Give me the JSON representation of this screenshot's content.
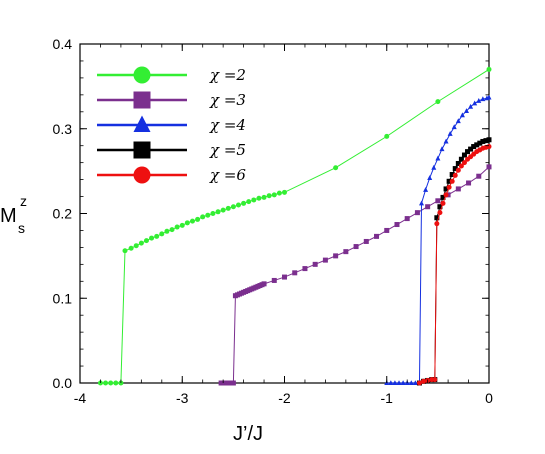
{
  "chart_data": {
    "type": "line",
    "xlabel": "J’/J",
    "ylabel": "M",
    "ylabel_sub": "s",
    "ylabel_sup": "z",
    "xlim": [
      -4,
      0
    ],
    "ylim": [
      0,
      0.4
    ],
    "xticks": [
      "-4",
      "-3",
      "-2",
      "-1",
      "0"
    ],
    "yticks": [
      "0.0",
      "0.1",
      "0.2",
      "0.3",
      "0.4"
    ],
    "legend_position": "top-left",
    "series": [
      {
        "name": "χ =2",
        "color": "#33ee33",
        "marker": "circle",
        "x": [
          -3.8,
          -3.75,
          -3.7,
          -3.65,
          -3.6,
          -3.56,
          -3.5,
          -3.45,
          -3.4,
          -3.35,
          -3.3,
          -3.25,
          -3.2,
          -3.15,
          -3.1,
          -3.05,
          -3.0,
          -2.95,
          -2.9,
          -2.85,
          -2.8,
          -2.75,
          -2.7,
          -2.65,
          -2.6,
          -2.55,
          -2.5,
          -2.45,
          -2.4,
          -2.35,
          -2.3,
          -2.25,
          -2.2,
          -2.15,
          -2.1,
          -2.05,
          -2.0,
          -1.5,
          -1.0,
          -0.5,
          0.0
        ],
        "y": [
          0.0,
          0.0,
          0.0,
          0.0,
          0.0,
          0.156,
          0.159,
          0.162,
          0.165,
          0.168,
          0.171,
          0.173,
          0.176,
          0.179,
          0.181,
          0.184,
          0.186,
          0.189,
          0.191,
          0.193,
          0.196,
          0.198,
          0.2,
          0.202,
          0.204,
          0.206,
          0.208,
          0.21,
          0.212,
          0.214,
          0.216,
          0.218,
          0.219,
          0.221,
          0.222,
          0.224,
          0.225,
          0.254,
          0.291,
          0.332,
          0.37
        ]
      },
      {
        "name": "χ =3",
        "color": "#7b2f8e",
        "marker": "square",
        "x": [
          -2.62,
          -2.58,
          -2.54,
          -2.5,
          -2.48,
          -2.46,
          -2.44,
          -2.42,
          -2.4,
          -2.38,
          -2.36,
          -2.34,
          -2.32,
          -2.3,
          -2.28,
          -2.26,
          -2.24,
          -2.22,
          -2.2,
          -2.1,
          -2.0,
          -1.9,
          -1.8,
          -1.7,
          -1.6,
          -1.5,
          -1.4,
          -1.3,
          -1.2,
          -1.1,
          -1.0,
          -0.9,
          -0.8,
          -0.7,
          -0.6,
          -0.5,
          -0.4,
          -0.3,
          -0.2,
          -0.1,
          0.0
        ],
        "y": [
          0.0,
          0.0,
          0.0,
          0.0,
          0.103,
          0.104,
          0.105,
          0.106,
          0.107,
          0.108,
          0.109,
          0.11,
          0.111,
          0.112,
          0.113,
          0.114,
          0.115,
          0.116,
          0.117,
          0.121,
          0.125,
          0.13,
          0.135,
          0.14,
          0.145,
          0.15,
          0.155,
          0.161,
          0.167,
          0.173,
          0.18,
          0.187,
          0.194,
          0.201,
          0.208,
          0.215,
          0.222,
          0.229,
          0.236,
          0.244,
          0.255
        ]
      },
      {
        "name": "χ =4",
        "color": "#1530e0",
        "marker": "triangle",
        "x": [
          -1.0,
          -0.96,
          -0.92,
          -0.88,
          -0.84,
          -0.8,
          -0.76,
          -0.72,
          -0.68,
          -0.66,
          -0.62,
          -0.58,
          -0.54,
          -0.5,
          -0.46,
          -0.42,
          -0.38,
          -0.34,
          -0.3,
          -0.26,
          -0.22,
          -0.18,
          -0.14,
          -0.1,
          -0.06,
          -0.02,
          0.0
        ],
        "y": [
          0.0,
          0.0,
          0.0,
          0.0,
          0.0,
          0.0,
          0.0,
          0.0,
          0.0,
          0.212,
          0.228,
          0.242,
          0.254,
          0.265,
          0.276,
          0.285,
          0.294,
          0.302,
          0.309,
          0.316,
          0.321,
          0.326,
          0.33,
          0.333,
          0.335,
          0.336,
          0.337
        ]
      },
      {
        "name": "χ =5",
        "color": "#000000",
        "marker": "square",
        "x": [
          -0.68,
          -0.64,
          -0.6,
          -0.56,
          -0.53,
          -0.51,
          -0.48,
          -0.45,
          -0.42,
          -0.39,
          -0.36,
          -0.33,
          -0.3,
          -0.27,
          -0.24,
          -0.21,
          -0.18,
          -0.15,
          -0.12,
          -0.09,
          -0.06,
          -0.03,
          0.0
        ],
        "y": [
          0.0,
          0.002,
          0.003,
          0.004,
          0.004,
          0.195,
          0.208,
          0.219,
          0.229,
          0.238,
          0.246,
          0.253,
          0.259,
          0.264,
          0.269,
          0.273,
          0.276,
          0.279,
          0.281,
          0.283,
          0.285,
          0.286,
          0.287
        ]
      },
      {
        "name": "χ =6",
        "color": "#ee1010",
        "marker": "circle",
        "x": [
          -0.68,
          -0.64,
          -0.6,
          -0.56,
          -0.53,
          -0.51,
          -0.48,
          -0.45,
          -0.42,
          -0.39,
          -0.36,
          -0.33,
          -0.3,
          -0.27,
          -0.24,
          -0.21,
          -0.18,
          -0.15,
          -0.12,
          -0.09,
          -0.06,
          -0.03,
          0.0
        ],
        "y": [
          0.0,
          0.002,
          0.003,
          0.004,
          0.004,
          0.188,
          0.201,
          0.212,
          0.222,
          0.231,
          0.238,
          0.245,
          0.251,
          0.256,
          0.26,
          0.264,
          0.267,
          0.27,
          0.273,
          0.275,
          0.277,
          0.278,
          0.279
        ]
      }
    ]
  }
}
